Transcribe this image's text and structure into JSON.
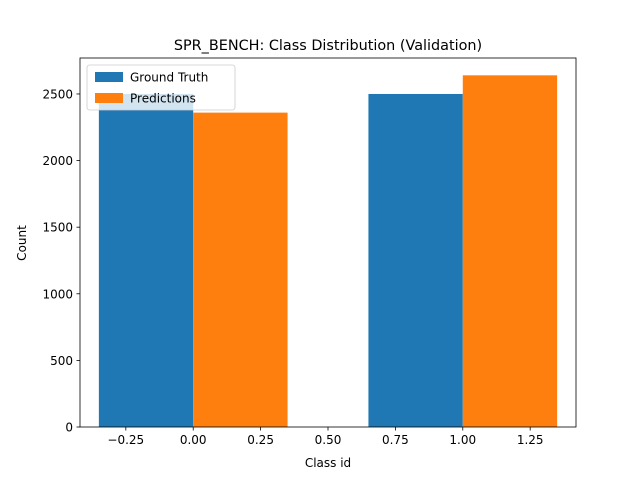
{
  "chart_data": {
    "type": "bar",
    "title": "SPR_BENCH: Class Distribution (Validation)",
    "xlabel": "Class id",
    "ylabel": "Count",
    "xlim": [
      -0.42,
      1.42
    ],
    "ylim": [
      0,
      2770
    ],
    "xticks": [
      -0.25,
      0.0,
      0.25,
      0.5,
      0.75,
      1.0,
      1.25
    ],
    "xtick_labels": [
      "−0.25",
      "0.00",
      "0.25",
      "0.50",
      "0.75",
      "1.00",
      "1.25"
    ],
    "yticks": [
      0,
      500,
      1000,
      1500,
      2000,
      2500
    ],
    "ytick_labels": [
      "0",
      "500",
      "1000",
      "1500",
      "2000",
      "2500"
    ],
    "bar_width": 0.35,
    "grid": false,
    "legend_position": "top-left",
    "series": [
      {
        "name": "Ground Truth",
        "color": "#1f77b4",
        "x": [
          -0.175,
          0.825
        ],
        "values": [
          2500,
          2500
        ]
      },
      {
        "name": "Predictions",
        "color": "#ff7f0e",
        "x": [
          0.175,
          1.175
        ],
        "values": [
          2360,
          2640
        ]
      }
    ]
  }
}
